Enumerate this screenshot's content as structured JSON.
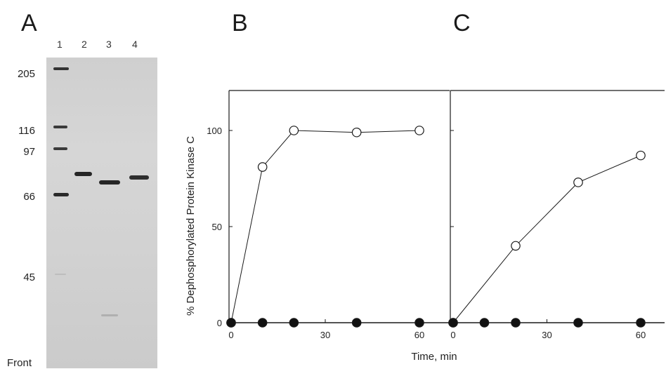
{
  "panels": {
    "A": "A",
    "B": "B",
    "C": "C"
  },
  "gel": {
    "lanes": [
      "1",
      "2",
      "3",
      "4"
    ],
    "markers": [
      "205",
      "116",
      "97",
      "66",
      "45"
    ],
    "front_label": "Front"
  },
  "chart_data": [
    {
      "type": "scatter",
      "panel": "B",
      "title": "",
      "xlabel": "Time, min",
      "ylabel": "% Dephosphorylated Protein Kinase C",
      "xlim": [
        0,
        60
      ],
      "ylim": [
        0,
        100
      ],
      "xticks": [
        0,
        30,
        60
      ],
      "yticks": [
        0,
        50,
        100
      ],
      "series": [
        {
          "marker": "open-circle",
          "x": [
            0,
            10,
            20,
            40,
            60
          ],
          "y": [
            0,
            81,
            100,
            99,
            100
          ]
        },
        {
          "marker": "filled-circle",
          "x": [
            0,
            10,
            20,
            40,
            60
          ],
          "y": [
            0,
            0,
            0,
            0,
            0
          ]
        }
      ]
    },
    {
      "type": "scatter",
      "panel": "C",
      "title": "",
      "xlabel": "Time, min",
      "ylabel": "% Dephosphorylated Protein Kinase C",
      "xlim": [
        0,
        60
      ],
      "ylim": [
        0,
        100
      ],
      "xticks": [
        0,
        30,
        60
      ],
      "yticks": [
        0,
        50,
        100
      ],
      "series": [
        {
          "marker": "open-circle",
          "x": [
            0,
            20,
            40,
            60
          ],
          "y": [
            0,
            40,
            73,
            87
          ]
        },
        {
          "marker": "filled-circle",
          "x": [
            0,
            10,
            20,
            40,
            60
          ],
          "y": [
            0,
            0,
            0,
            0,
            0
          ]
        }
      ]
    }
  ],
  "colors": {
    "ink": "#1a1a1a",
    "gel": "#d2d2d2",
    "band": "#2a2a2a"
  }
}
